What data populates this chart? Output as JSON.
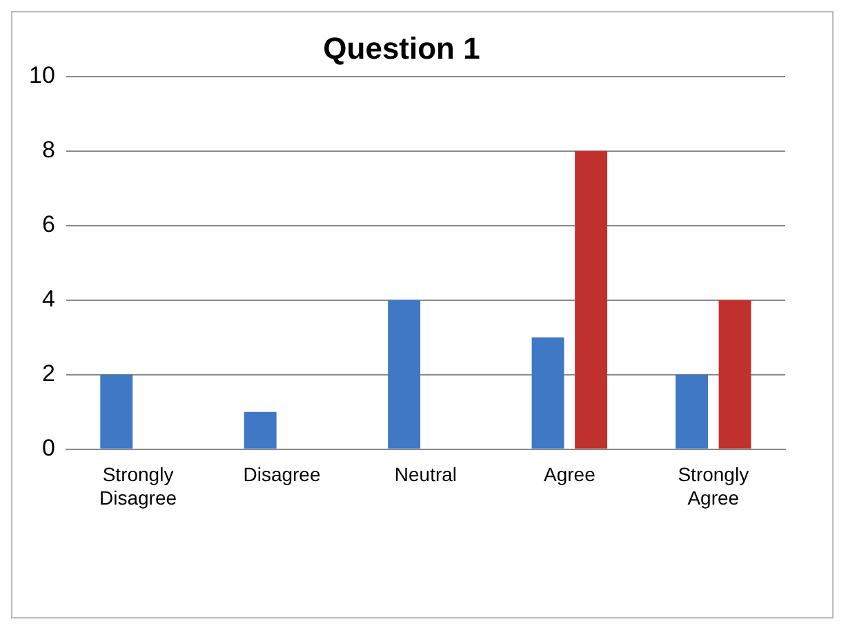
{
  "chart_data": {
    "type": "bar",
    "title": "Question 1",
    "categories": [
      "Strongly Disagree",
      "Disagree",
      "Neutral",
      "Agree",
      "Strongly Agree"
    ],
    "series": [
      {
        "color": "#3f78c4",
        "values": [
          2,
          1,
          4,
          3,
          2
        ]
      },
      {
        "color": "#c0302d",
        "values": [
          0,
          0,
          0,
          8,
          4
        ]
      }
    ],
    "ylim": [
      0,
      10
    ],
    "yticks": [
      0,
      2,
      4,
      6,
      8,
      10
    ],
    "grid": "y"
  }
}
